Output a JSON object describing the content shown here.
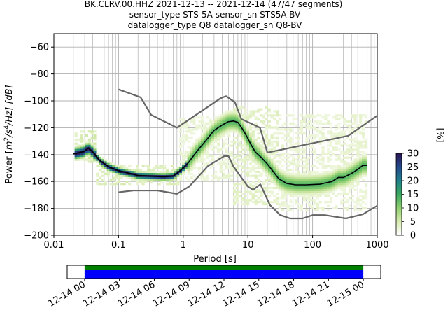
{
  "title_lines": [
    "BK.CLRV.00.HHZ   2021-12-13 -- 2021-12-14  (47/47 segments)",
    "sensor_type STS-5A sensor_sn STS5A-BV",
    "datalogger_type Q8 datalogger_sn Q8-BV"
  ],
  "chart_data": {
    "type": "heatmap",
    "xlabel": "Period [s]",
    "ylabel_parts": {
      "prefix": "Power [",
      "m": "m",
      "exp2": "2",
      "mid": "/s",
      "exp4": "4",
      "suffix": "/Hz] [dB]"
    },
    "x_scale": "log",
    "xlim": [
      0.01,
      1000
    ],
    "ylim": [
      -200,
      -50
    ],
    "x_ticks": [
      {
        "value": 0.01,
        "label": "0.01"
      },
      {
        "value": 0.1,
        "label": "0.1"
      },
      {
        "value": 1,
        "label": "1"
      },
      {
        "value": 10,
        "label": "10"
      },
      {
        "value": 100,
        "label": "100"
      },
      {
        "value": 1000,
        "label": "1000"
      }
    ],
    "y_ticks": [
      {
        "value": -60,
        "label": "−60"
      },
      {
        "value": -80,
        "label": "−80"
      },
      {
        "value": -100,
        "label": "−100"
      },
      {
        "value": -120,
        "label": "−120"
      },
      {
        "value": -140,
        "label": "−140"
      },
      {
        "value": -160,
        "label": "−160"
      },
      {
        "value": -180,
        "label": "−180"
      },
      {
        "value": -200,
        "label": "−200"
      }
    ],
    "grid": true,
    "colorbar": {
      "label": "[%]",
      "range": [
        0,
        30
      ],
      "ticks": [
        {
          "value": 0,
          "label": "0"
        },
        {
          "value": 5,
          "label": "5"
        },
        {
          "value": 10,
          "label": "10"
        },
        {
          "value": 15,
          "label": "15"
        },
        {
          "value": 20,
          "label": "20"
        },
        {
          "value": 25,
          "label": "25"
        },
        {
          "value": 30,
          "label": "30"
        }
      ],
      "stops": [
        "#ffffff",
        "#d8ebb0",
        "#90d070",
        "#3aa860",
        "#20808a",
        "#244a8c",
        "#2a1450"
      ]
    },
    "nhnm": [
      [
        0.1,
        -168
      ],
      [
        0.17,
        -166.7
      ],
      [
        0.4,
        -166.7
      ],
      [
        0.8,
        -169.2
      ],
      [
        1.24,
        -163.7
      ],
      [
        2.4,
        -148.6
      ],
      [
        4.3,
        -141.1
      ],
      [
        5.0,
        -141.1
      ],
      [
        6.0,
        -149
      ],
      [
        10.0,
        -163.8
      ],
      [
        12.0,
        -166.2
      ],
      [
        15.6,
        -162.1
      ],
      [
        21.9,
        -177.5
      ],
      [
        31.6,
        -185
      ],
      [
        45,
        -187.5
      ],
      [
        70,
        -187.5
      ],
      [
        101,
        -185
      ],
      [
        154,
        -185
      ],
      [
        328,
        -187.5
      ],
      [
        600,
        -184.4
      ],
      [
        1000,
        -178
      ]
    ],
    "nlnm": [
      [
        0.1,
        -91.5
      ],
      [
        0.22,
        -97.4
      ],
      [
        0.32,
        -110.5
      ],
      [
        0.8,
        -120
      ],
      [
        3.8,
        -98
      ],
      [
        4.6,
        -96.5
      ],
      [
        6.3,
        -101
      ],
      [
        7.9,
        -113.5
      ],
      [
        15.4,
        -120
      ],
      [
        20,
        -138.5
      ],
      [
        354.8,
        -126
      ],
      [
        1000,
        -111
      ]
    ],
    "median": [
      [
        0.02,
        -139.5
      ],
      [
        0.025,
        -138.5
      ],
      [
        0.03,
        -137.5
      ],
      [
        0.034,
        -135
      ],
      [
        0.04,
        -138
      ],
      [
        0.05,
        -144
      ],
      [
        0.07,
        -149
      ],
      [
        0.1,
        -152
      ],
      [
        0.15,
        -154
      ],
      [
        0.2,
        -155.5
      ],
      [
        0.3,
        -156
      ],
      [
        0.5,
        -156.5
      ],
      [
        0.7,
        -156
      ],
      [
        0.9,
        -152
      ],
      [
        1.2,
        -146
      ],
      [
        1.6,
        -138
      ],
      [
        2.2,
        -130
      ],
      [
        3.0,
        -122
      ],
      [
        4.0,
        -118
      ],
      [
        5.0,
        -115.5
      ],
      [
        6.0,
        -115
      ],
      [
        7.0,
        -116
      ],
      [
        8.0,
        -120
      ],
      [
        9.0,
        -124
      ],
      [
        10.0,
        -128
      ],
      [
        11.0,
        -132
      ],
      [
        13.0,
        -138
      ],
      [
        16.0,
        -142
      ],
      [
        20.0,
        -147
      ],
      [
        25.0,
        -153
      ],
      [
        30.0,
        -158
      ],
      [
        40.0,
        -161.5
      ],
      [
        55.0,
        -162.5
      ],
      [
        80.0,
        -162.5
      ],
      [
        130.0,
        -162
      ],
      [
        200.0,
        -160
      ],
      [
        250.0,
        -157
      ],
      [
        300.0,
        -157
      ],
      [
        400.0,
        -154
      ],
      [
        500.0,
        -151
      ],
      [
        600.0,
        -148
      ],
      [
        700.0,
        -148
      ]
    ],
    "density_bands": [
      {
        "x": [
          0.019,
          0.045
        ],
        "y": [
          -146,
          -122
        ],
        "level": 0.2
      },
      {
        "x": [
          0.045,
          0.9
        ],
        "y": [
          -162,
          -148
        ],
        "level": 0.18
      },
      {
        "x": [
          0.9,
          6.0
        ],
        "y": [
          -160,
          -112
        ],
        "level": 0.12
      },
      {
        "x": [
          6.0,
          30.0
        ],
        "y": [
          -178,
          -104
        ],
        "level": 0.15
      },
      {
        "x": [
          30.0,
          700.0
        ],
        "y": [
          -182,
          -110
        ],
        "level": 0.12
      }
    ],
    "time_axis": {
      "labels": [
        "12-14 00",
        "12-14 03",
        "12-14 06",
        "12-14 09",
        "12-14 12",
        "12-14 15",
        "12-14 18",
        "12-14 21",
        "12-15 00"
      ],
      "range_hours": [
        -1.5,
        25.5
      ],
      "coverage_green": [
        0,
        24
      ],
      "coverage_blue": [
        0,
        24
      ],
      "color_green": "#008000",
      "color_blue": "#0000ff"
    },
    "colors": {
      "noise_model": "#666666",
      "median": "#000000"
    }
  }
}
